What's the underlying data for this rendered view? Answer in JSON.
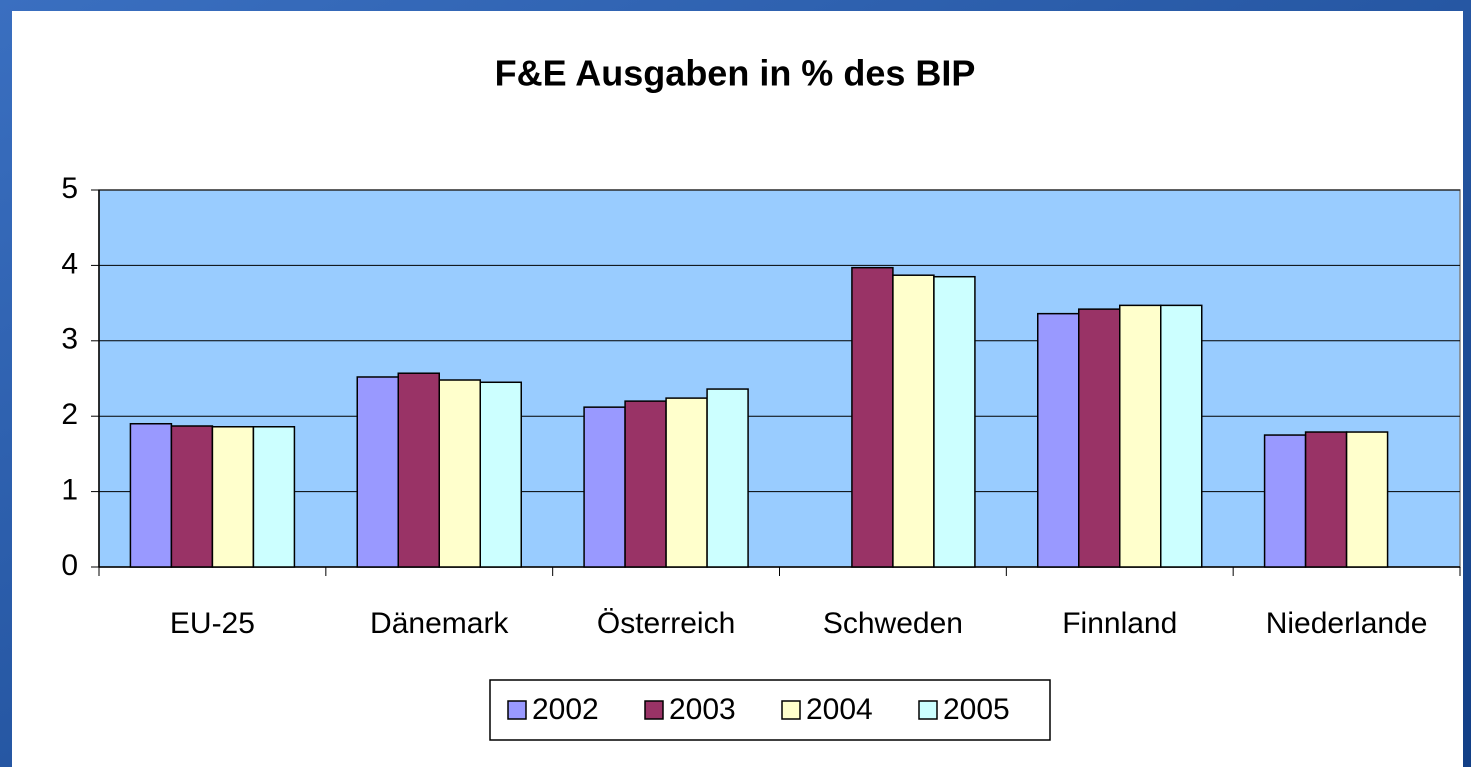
{
  "chart_data": {
    "type": "bar",
    "title": "F&E Ausgaben in % des BIP",
    "categories": [
      "EU-25",
      "Dänemark",
      "Österreich",
      "Schweden",
      "Finnland",
      "Niederlande"
    ],
    "series": [
      {
        "name": "2002",
        "color": "#9999ff",
        "values": [
          1.9,
          2.52,
          2.12,
          null,
          3.36,
          1.75
        ]
      },
      {
        "name": "2003",
        "color": "#993366",
        "values": [
          1.87,
          2.57,
          2.2,
          3.97,
          3.42,
          1.79
        ]
      },
      {
        "name": "2004",
        "color": "#ffffcc",
        "values": [
          1.86,
          2.48,
          2.24,
          3.87,
          3.47,
          1.79
        ]
      },
      {
        "name": "2005",
        "color": "#ccffff",
        "values": [
          1.86,
          2.45,
          2.36,
          3.85,
          3.47,
          null
        ]
      }
    ],
    "ylim": [
      0,
      5
    ],
    "yticks": [
      0,
      1,
      2,
      3,
      4,
      5
    ],
    "grid": true,
    "legend": "bottom",
    "plot_background": "#99ccff"
  }
}
